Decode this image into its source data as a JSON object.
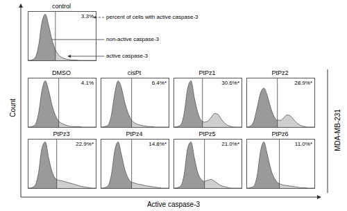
{
  "chart_data": [
    {
      "type": "area",
      "title": "control",
      "annotation": "3.3%",
      "x": [
        0,
        5,
        10,
        15,
        20,
        25,
        30,
        35,
        40,
        45,
        50,
        55,
        60,
        65,
        70,
        75,
        80,
        85,
        90,
        95,
        100
      ],
      "values": [
        0,
        1,
        6,
        30,
        78,
        95,
        72,
        42,
        22,
        11,
        6,
        3,
        2,
        1,
        1,
        0,
        0,
        0,
        0,
        0,
        0
      ],
      "gate": 40,
      "xlim": [
        0,
        100
      ],
      "ylim": [
        0,
        100
      ],
      "tick_labels": false,
      "colors": [
        "#9a9a9a",
        "#cfcfcf"
      ]
    },
    {
      "type": "area",
      "title": "DMSO",
      "annotation": "4.1%",
      "x": [
        0,
        5,
        10,
        15,
        20,
        25,
        30,
        35,
        40,
        45,
        50,
        55,
        60,
        65,
        70,
        75,
        80,
        85,
        90,
        95,
        100
      ],
      "values": [
        0,
        1,
        5,
        28,
        75,
        95,
        75,
        45,
        24,
        12,
        7,
        4,
        2,
        1,
        1,
        1,
        0,
        0,
        0,
        0,
        0
      ],
      "gate": 45,
      "xlim": [
        0,
        100
      ],
      "ylim": [
        0,
        100
      ],
      "tick_labels": false,
      "colors": [
        "#9a9a9a",
        "#cfcfcf"
      ]
    },
    {
      "type": "area",
      "title": "cisPt",
      "annotation": "6.4%*",
      "x": [
        0,
        5,
        10,
        15,
        20,
        25,
        30,
        35,
        40,
        45,
        50,
        55,
        60,
        65,
        70,
        75,
        80,
        85,
        90,
        95,
        100
      ],
      "values": [
        0,
        1,
        4,
        25,
        70,
        95,
        80,
        50,
        28,
        14,
        8,
        5,
        3,
        2,
        1,
        1,
        0,
        0,
        0,
        0,
        0
      ],
      "gate": 45,
      "xlim": [
        0,
        100
      ],
      "ylim": [
        0,
        100
      ],
      "tick_labels": false,
      "colors": [
        "#9a9a9a",
        "#cfcfcf"
      ]
    },
    {
      "type": "area",
      "title": "PtPz1",
      "annotation": "30.6%*",
      "x": [
        0,
        5,
        10,
        15,
        20,
        25,
        30,
        35,
        40,
        45,
        50,
        55,
        60,
        65,
        70,
        75,
        80,
        85,
        90,
        95,
        100
      ],
      "values": [
        0,
        1,
        5,
        30,
        80,
        95,
        60,
        30,
        14,
        10,
        12,
        20,
        28,
        26,
        16,
        8,
        3,
        1,
        0,
        0,
        0
      ],
      "gate": 42,
      "xlim": [
        0,
        100
      ],
      "ylim": [
        0,
        100
      ],
      "tick_labels": false,
      "colors": [
        "#9a9a9a",
        "#cfcfcf"
      ]
    },
    {
      "type": "area",
      "title": "PtPz2",
      "annotation": "28.9%*",
      "x": [
        0,
        5,
        10,
        15,
        20,
        25,
        30,
        35,
        40,
        45,
        50,
        55,
        60,
        65,
        70,
        75,
        80,
        85,
        90,
        95,
        100
      ],
      "values": [
        0,
        2,
        12,
        40,
        70,
        80,
        65,
        40,
        22,
        14,
        14,
        20,
        25,
        22,
        14,
        7,
        3,
        1,
        0,
        0,
        0
      ],
      "gate": 45,
      "xlim": [
        0,
        100
      ],
      "ylim": [
        0,
        100
      ],
      "tick_labels": false,
      "colors": [
        "#9a9a9a",
        "#cfcfcf"
      ]
    },
    {
      "type": "area",
      "title": "PtPz3",
      "annotation": "22.9%*",
      "x": [
        0,
        5,
        10,
        15,
        20,
        25,
        30,
        35,
        40,
        45,
        50,
        55,
        60,
        65,
        70,
        75,
        80,
        85,
        90,
        95,
        100
      ],
      "values": [
        0,
        1,
        6,
        32,
        82,
        95,
        62,
        34,
        20,
        16,
        15,
        13,
        11,
        9,
        7,
        5,
        3,
        2,
        1,
        0,
        0
      ],
      "gate": 42,
      "xlim": [
        0,
        100
      ],
      "ylim": [
        0,
        100
      ],
      "tick_labels": false,
      "colors": [
        "#9a9a9a",
        "#cfcfcf"
      ]
    },
    {
      "type": "area",
      "title": "PtPz4",
      "annotation": "14.8%*",
      "x": [
        0,
        5,
        10,
        15,
        20,
        25,
        30,
        35,
        40,
        45,
        50,
        55,
        60,
        65,
        70,
        75,
        80,
        85,
        90,
        95,
        100
      ],
      "values": [
        0,
        1,
        5,
        28,
        78,
        95,
        68,
        38,
        20,
        12,
        10,
        8,
        7,
        5,
        4,
        3,
        2,
        1,
        0,
        0,
        0
      ],
      "gate": 45,
      "xlim": [
        0,
        100
      ],
      "ylim": [
        0,
        100
      ],
      "tick_labels": false,
      "colors": [
        "#9a9a9a",
        "#cfcfcf"
      ]
    },
    {
      "type": "area",
      "title": "PtPz5",
      "annotation": "21.0%*",
      "x": [
        0,
        5,
        10,
        15,
        20,
        25,
        30,
        35,
        40,
        45,
        50,
        55,
        60,
        65,
        70,
        75,
        80,
        85,
        90,
        95,
        100
      ],
      "values": [
        0,
        1,
        5,
        30,
        82,
        95,
        62,
        32,
        18,
        14,
        16,
        18,
        14,
        9,
        5,
        3,
        1,
        0,
        0,
        0,
        0
      ],
      "gate": 45,
      "xlim": [
        0,
        100
      ],
      "ylim": [
        0,
        100
      ],
      "tick_labels": false,
      "colors": [
        "#9a9a9a",
        "#cfcfcf"
      ]
    },
    {
      "type": "area",
      "title": "PtPz6",
      "annotation": "11.0%*",
      "x": [
        0,
        5,
        10,
        15,
        20,
        25,
        30,
        35,
        40,
        45,
        50,
        55,
        60,
        65,
        70,
        75,
        80,
        85,
        90,
        95,
        100
      ],
      "values": [
        0,
        1,
        4,
        26,
        76,
        95,
        70,
        40,
        22,
        12,
        8,
        6,
        5,
        4,
        3,
        2,
        1,
        1,
        0,
        0,
        0
      ],
      "gate": 48,
      "xlim": [
        0,
        100
      ],
      "ylim": [
        0,
        100
      ],
      "tick_labels": false,
      "colors": [
        "#9a9a9a",
        "#cfcfcf"
      ]
    }
  ],
  "x_label": "Active caspase-3",
  "y_label": "Count",
  "side_label": "MDA-MB-231",
  "annotations": [
    "percent of cells with active caspase-3",
    "non-active caspase-3",
    "active caspase-3"
  ]
}
